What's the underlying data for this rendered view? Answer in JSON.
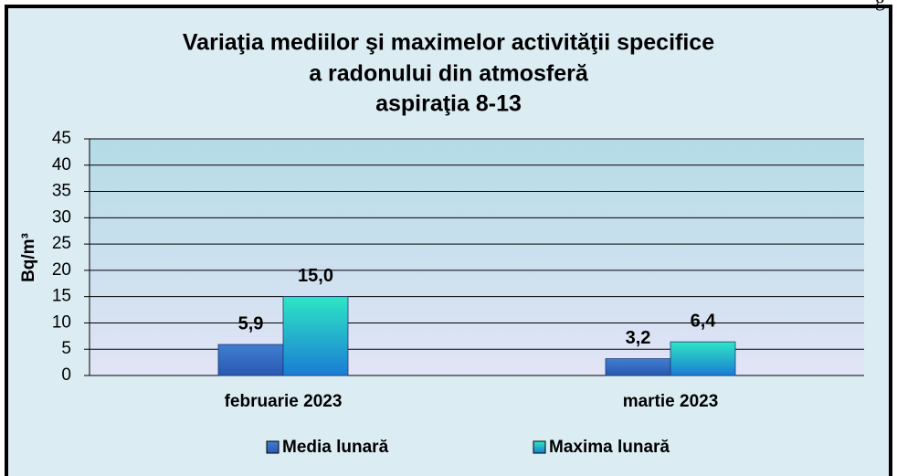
{
  "corner_text": "g",
  "chart_data": {
    "type": "bar",
    "title_lines": [
      "Variaţia mediilor şi maximelor activităţii specifice",
      "a radonului din atmosferă",
      "aspiraţia 8-13"
    ],
    "y_label": "Bq/m³",
    "categories": [
      "februarie 2023",
      "martie 2023"
    ],
    "series": [
      {
        "name": "Media lunară",
        "color": "#3468c0",
        "values": [
          5.9,
          3.2
        ],
        "value_labels": [
          "5,9",
          "3,2"
        ]
      },
      {
        "name": "Maxima lunară",
        "color": "#22c8d0",
        "values": [
          15.0,
          6.4
        ],
        "value_labels": [
          "15,0",
          "6,4"
        ]
      }
    ],
    "ylim": [
      0,
      45
    ],
    "yticks": [
      0,
      5,
      10,
      15,
      20,
      25,
      30,
      35,
      40,
      45
    ],
    "grid": true,
    "legend": "bottom"
  }
}
